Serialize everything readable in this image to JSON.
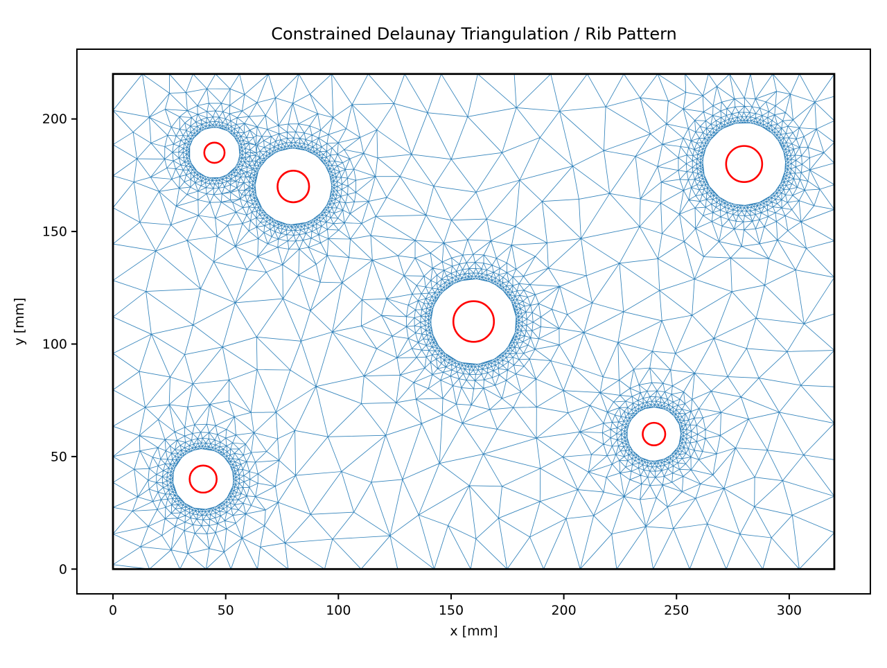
{
  "figure": {
    "background": "#ffffff"
  },
  "chart_data": {
    "type": "triangulation",
    "title": "Constrained Delaunay Triangulation / Rib Pattern",
    "xlabel": "x [mm]",
    "ylabel": "y [mm]",
    "xlim": [
      -16,
      336
    ],
    "ylim": [
      -11,
      231
    ],
    "xticks": [
      0,
      50,
      100,
      150,
      200,
      250,
      300
    ],
    "yticks": [
      0,
      50,
      100,
      150,
      200
    ],
    "grid": false,
    "legend": null,
    "plate_outline": {
      "x0": 0,
      "y0": 0,
      "x1": 320,
      "y1": 220
    },
    "holes": [
      {
        "cx": 45,
        "cy": 185,
        "mesh_clearance_radius": 11.3,
        "red_circle_radius": 4.5
      },
      {
        "cx": 80,
        "cy": 170,
        "mesh_clearance_radius": 17.0,
        "red_circle_radius": 7.0
      },
      {
        "cx": 160,
        "cy": 110,
        "mesh_clearance_radius": 19.0,
        "red_circle_radius": 9.0
      },
      {
        "cx": 280,
        "cy": 180,
        "mesh_clearance_radius": 18.4,
        "red_circle_radius": 8.0
      },
      {
        "cx": 240,
        "cy": 60,
        "mesh_clearance_radius": 12.0,
        "red_circle_radius": 5.0
      },
      {
        "cx": 40,
        "cy": 40,
        "mesh_clearance_radius": 13.5,
        "red_circle_radius": 6.0
      }
    ],
    "colors": {
      "mesh": "#1f77b4",
      "plate_outline": "#000000",
      "hole_circles": "#ff0000",
      "background": "#ffffff"
    },
    "mesh": {
      "seed": 11,
      "h_min": 1.15,
      "h_max": 18,
      "growth_slope": 0.42,
      "ring_offsets": [
        0,
        1.1,
        2.6,
        4.6,
        7.3,
        10.9
      ],
      "ring_spacings": [
        1.1,
        1.5,
        2.0,
        2.7,
        3.7,
        4.9
      ]
    }
  }
}
